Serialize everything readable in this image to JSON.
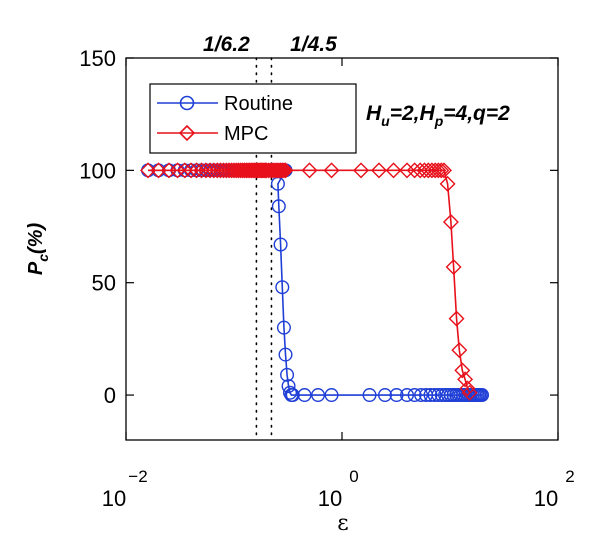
{
  "chart_data": {
    "type": "line",
    "xscale": "log",
    "xlim": [
      0.01,
      100
    ],
    "ylim": [
      -20,
      150
    ],
    "x_ticks": [
      {
        "base": "10",
        "exp": "−2",
        "value": 0.01
      },
      {
        "base": "10",
        "exp": "0",
        "value": 1
      },
      {
        "base": "10",
        "exp": "2",
        "value": 100
      }
    ],
    "y_ticks": [
      0,
      50,
      100,
      150
    ],
    "xlabel": "ε",
    "ylabel": {
      "main": "P",
      "sub": "c",
      "rest": "(%)"
    },
    "annotation": {
      "p1": "H",
      "s1": "u",
      "p2": "=2,H",
      "s2": "p",
      "p3": "=4,q=2"
    },
    "vlines": [
      {
        "x": 0.16129,
        "label": "1/6.2"
      },
      {
        "x": 0.22222,
        "label": "1/4.5"
      }
    ],
    "grid": false,
    "legend_position": "top-left",
    "series": [
      {
        "name": "Routine",
        "color": "#1f3fd6",
        "marker": "circle",
        "points": [
          [
            0.016,
            100
          ],
          [
            0.02,
            100
          ],
          [
            0.025,
            100
          ],
          [
            0.03,
            100
          ],
          [
            0.035,
            100
          ],
          [
            0.04,
            100
          ],
          [
            0.045,
            100
          ],
          [
            0.05,
            100
          ],
          [
            0.055,
            100
          ],
          [
            0.06,
            100
          ],
          [
            0.065,
            100
          ],
          [
            0.07,
            100
          ],
          [
            0.075,
            100
          ],
          [
            0.08,
            100
          ],
          [
            0.085,
            100
          ],
          [
            0.09,
            100
          ],
          [
            0.095,
            100
          ],
          [
            0.1,
            100
          ],
          [
            0.105,
            100
          ],
          [
            0.11,
            100
          ],
          [
            0.115,
            100
          ],
          [
            0.12,
            100
          ],
          [
            0.125,
            100
          ],
          [
            0.13,
            100
          ],
          [
            0.135,
            100
          ],
          [
            0.14,
            100
          ],
          [
            0.145,
            100
          ],
          [
            0.15,
            100
          ],
          [
            0.155,
            100
          ],
          [
            0.16,
            100
          ],
          [
            0.165,
            100
          ],
          [
            0.17,
            100
          ],
          [
            0.175,
            100
          ],
          [
            0.18,
            100
          ],
          [
            0.185,
            100
          ],
          [
            0.19,
            100
          ],
          [
            0.195,
            100
          ],
          [
            0.2,
            100
          ],
          [
            0.205,
            100
          ],
          [
            0.21,
            100
          ],
          [
            0.215,
            100
          ],
          [
            0.22,
            100
          ],
          [
            0.225,
            100
          ],
          [
            0.23,
            100
          ],
          [
            0.235,
            100
          ],
          [
            0.24,
            100
          ],
          [
            0.245,
            100
          ],
          [
            0.25,
            100
          ],
          [
            0.255,
            100
          ],
          [
            0.26,
            100
          ],
          [
            0.265,
            100
          ],
          [
            0.27,
            100
          ],
          [
            0.275,
            100
          ],
          [
            0.28,
            100
          ],
          [
            0.285,
            100
          ],
          [
            0.29,
            100
          ],
          [
            0.295,
            100
          ],
          [
            0.3,
            100
          ],
          [
            0.255,
            94
          ],
          [
            0.26,
            84
          ],
          [
            0.27,
            67
          ],
          [
            0.28,
            48
          ],
          [
            0.29,
            30
          ],
          [
            0.3,
            18
          ],
          [
            0.31,
            9
          ],
          [
            0.32,
            4
          ],
          [
            0.33,
            1
          ],
          [
            0.34,
            0
          ],
          [
            0.35,
            0
          ],
          [
            0.45,
            0
          ],
          [
            0.6,
            0
          ],
          [
            0.8,
            0
          ],
          [
            1.8,
            0
          ],
          [
            2.5,
            0
          ],
          [
            3.2,
            0
          ],
          [
            4.0,
            0
          ],
          [
            4.7,
            0
          ],
          [
            5.4,
            0
          ],
          [
            6.0,
            0
          ],
          [
            6.6,
            0
          ],
          [
            7.2,
            0
          ],
          [
            7.8,
            0
          ],
          [
            8.4,
            0
          ],
          [
            9.0,
            0
          ],
          [
            9.6,
            0
          ],
          [
            10.2,
            0
          ],
          [
            10.8,
            0
          ],
          [
            11.4,
            0
          ],
          [
            12.0,
            0
          ],
          [
            12.6,
            0
          ],
          [
            13.2,
            0
          ],
          [
            13.8,
            0
          ],
          [
            14.4,
            0
          ],
          [
            15.0,
            0
          ],
          [
            15.6,
            0
          ],
          [
            16.2,
            0
          ],
          [
            16.8,
            0
          ],
          [
            17.4,
            0
          ],
          [
            18.0,
            0
          ],
          [
            18.6,
            0
          ],
          [
            19.2,
            0
          ],
          [
            19.8,
            0
          ]
        ]
      },
      {
        "name": "MPC",
        "color": "#e8101a",
        "marker": "diamond",
        "points": [
          [
            0.016,
            100
          ],
          [
            0.02,
            100
          ],
          [
            0.025,
            100
          ],
          [
            0.03,
            100
          ],
          [
            0.035,
            100
          ],
          [
            0.04,
            100
          ],
          [
            0.045,
            100
          ],
          [
            0.05,
            100
          ],
          [
            0.055,
            100
          ],
          [
            0.06,
            100
          ],
          [
            0.065,
            100
          ],
          [
            0.07,
            100
          ],
          [
            0.075,
            100
          ],
          [
            0.08,
            100
          ],
          [
            0.085,
            100
          ],
          [
            0.09,
            100
          ],
          [
            0.095,
            100
          ],
          [
            0.1,
            100
          ],
          [
            0.105,
            100
          ],
          [
            0.11,
            100
          ],
          [
            0.115,
            100
          ],
          [
            0.12,
            100
          ],
          [
            0.125,
            100
          ],
          [
            0.13,
            100
          ],
          [
            0.135,
            100
          ],
          [
            0.14,
            100
          ],
          [
            0.145,
            100
          ],
          [
            0.15,
            100
          ],
          [
            0.155,
            100
          ],
          [
            0.16,
            100
          ],
          [
            0.165,
            100
          ],
          [
            0.17,
            100
          ],
          [
            0.175,
            100
          ],
          [
            0.18,
            100
          ],
          [
            0.185,
            100
          ],
          [
            0.19,
            100
          ],
          [
            0.195,
            100
          ],
          [
            0.2,
            100
          ],
          [
            0.21,
            100
          ],
          [
            0.22,
            100
          ],
          [
            0.23,
            100
          ],
          [
            0.24,
            100
          ],
          [
            0.25,
            100
          ],
          [
            0.26,
            100
          ],
          [
            0.27,
            100
          ],
          [
            0.28,
            100
          ],
          [
            0.29,
            100
          ],
          [
            0.3,
            100
          ],
          [
            0.5,
            100
          ],
          [
            0.8,
            100
          ],
          [
            1.5,
            100
          ],
          [
            2.2,
            100
          ],
          [
            3.0,
            100
          ],
          [
            4.0,
            100
          ],
          [
            4.7,
            100
          ],
          [
            5.3,
            100
          ],
          [
            5.8,
            100
          ],
          [
            6.3,
            100
          ],
          [
            6.8,
            100
          ],
          [
            7.3,
            100
          ],
          [
            7.8,
            100
          ],
          [
            8.3,
            100
          ],
          [
            8.8,
            100
          ],
          [
            9.5,
            94
          ],
          [
            10.2,
            77
          ],
          [
            10.8,
            57
          ],
          [
            11.5,
            34
          ],
          [
            12.2,
            20
          ],
          [
            13.0,
            11
          ],
          [
            13.8,
            7
          ],
          [
            14.5,
            3
          ],
          [
            15.2,
            1
          ]
        ]
      }
    ]
  }
}
